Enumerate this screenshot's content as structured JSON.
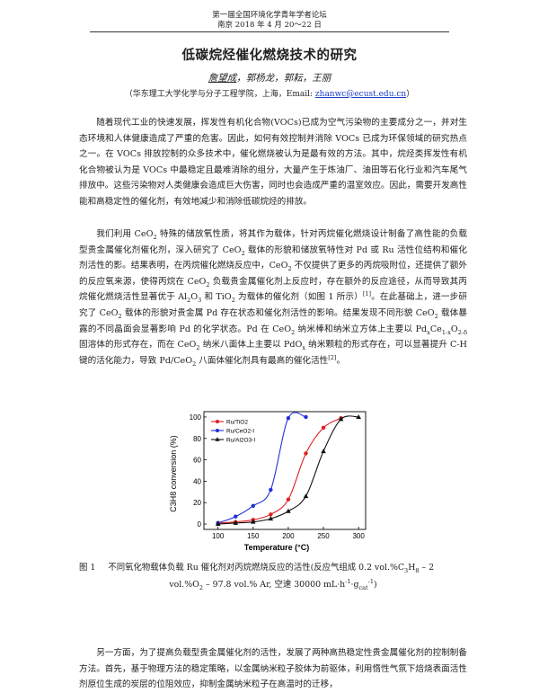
{
  "header": {
    "conference": "第一届全国环境化学青年学者论坛",
    "location_date": "南京  2018 年 4 月 20～22 日"
  },
  "title": "低碳烷烃催化燃烧技术的研究",
  "authors": {
    "first": "詹望成",
    "rest": "，郭杨龙，郭耘，王丽"
  },
  "affiliation": {
    "text": "（华东理工大学化学与分子工程学院，上海，Email:",
    "email": "zhanwc@ecust.edu.cn",
    "close": "）"
  },
  "paragraphs": {
    "p1": "随着现代工业的快速发展，挥发性有机化合物(VOCs)已成为空气污染物的主要成分之一，并对生态环境和人体健康造成了严重的危害。因此，如何有效控制并消除 VOCs 已成为环保领域的研究热点之一。在 VOCs 排放控制的众多技术中，催化燃烧被认为是最有效的方法。其中，烷烃类挥发性有机化合物被认为是 VOCs 中最稳定且最难消除的组分，大量产生于炼油厂、油田等石化行业和汽车尾气排放中。这些污染物对人类健康会造成巨大伤害，同时也会造成严重的温室效应。因此，需要开发高性能和高稳定性的催化剂，有效地减少和消除低碳烷烃的排放。",
    "p2_a": "我们利用 CeO",
    "p2_b": " 特殊的储放氧性质，将其作为载体，针对丙烷催化燃烧设计制备了高性能的负载型贵金属催化剂催化剂，深入研究了 CeO",
    "p2_c": " 载体的形貌和储放氧特性对 Pd 或 Ru 活性位结构和催化剂活性的影。结果表明，在丙烷催化燃烧反应中，CeO",
    "p2_d": " 不仅提供了更多的丙烷吸附位，还提供了额外的反应氧来源，使得丙烷在 CeO",
    "p2_e": " 负载贵金属催化剂上反应时，存在额外的反应途径，从而导致其丙烷催化燃烧活性显著优于 Al",
    "p2_f": "O",
    "p2_g": " 和 TiO",
    "p2_h": " 为载体的催化剂（如图 1 所示）",
    "p2_ref1": "[1]",
    "p2_i": "。在此基础上，进一步研究了 CeO",
    "p2_j": " 载体的形貌对贵金属 Pd 存在状态和催化剂活性的影响。结果发现不同形貌 CeO",
    "p2_k": " 载体暴露的不同晶面会显著影响 Pd 的化学状态。Pd 在 CeO",
    "p2_l": " 纳米棒和纳米立方体上主要以 Pd",
    "p2_m": "Ce",
    "p2_n": "O",
    "p2_o": " 固溶体的形式存在，而在 CeO",
    "p2_p": " 纳米八面体上主要以 PdO",
    "p2_q": " 纳米颗粒的形式存在，可以显著提升 C-H 键的活化能力，导致 Pd/CeO",
    "p2_r": " 八面体催化剂具有最高的催化活性",
    "p2_ref2": "[2]",
    "p2_s": "。",
    "p3": "另一方面，为了提高负载型贵金属催化剂的活性，发展了两种高热稳定性贵金属催化剂的控制制备方法。首先，基于物理方法的稳定策略，以金属纳米粒子胶体为前驱体，利用惰性气氛下焙烧表面活性剂原位生成的炭层的位阻效应，抑制金属纳米粒子在高温时的迁移，"
  },
  "subs": {
    "two": "2",
    "three": "3",
    "x": "x",
    "one_minus_x": "1-x",
    "two_minus_d": "2-δ"
  },
  "caption": {
    "label": "图 1",
    "line1": "不同氧化物载体负载 Ru 催化剂对丙烷燃烧反应的活性(反应气组成 0.2 vol.%C",
    "c3": "3",
    "h8": "H",
    "eight": "8",
    "line1_end": " – 2",
    "line2": "vol.%O",
    "line2_b": " – 97.8 vol.% Ar, 空速 30000 mL·h",
    "exp": "-1",
    "line2_c": "·g",
    "cat": "cat",
    "exp2": "-1",
    "line2_d": ")"
  },
  "chart_data": {
    "type": "line",
    "xlabel": "Temperature (°C)",
    "ylabel": "C3H8 conversion (%)",
    "xlim": [
      80,
      310
    ],
    "ylim": [
      -5,
      105
    ],
    "xticks": [
      100,
      150,
      200,
      250,
      300
    ],
    "yticks": [
      0,
      20,
      40,
      60,
      80,
      100
    ],
    "legend_position": "top-left",
    "series": [
      {
        "name": "Ru/TiO2",
        "color": "#e02020",
        "marker": "circle",
        "x": [
          100,
          125,
          150,
          175,
          200,
          225,
          250,
          275
        ],
        "y": [
          1,
          2,
          4,
          9,
          23,
          66,
          90,
          99
        ]
      },
      {
        "name": "Ru/CeO2-I",
        "color": "#2030d8",
        "marker": "circle",
        "x": [
          100,
          125,
          150,
          175,
          200,
          225
        ],
        "y": [
          1,
          7,
          17,
          32,
          99,
          100
        ]
      },
      {
        "name": "Ru/Al2O3-I",
        "color": "#111111",
        "marker": "triangle",
        "x": [
          100,
          125,
          150,
          175,
          200,
          225,
          250,
          275,
          300
        ],
        "y": [
          0,
          1,
          2,
          5,
          12,
          26,
          68,
          98,
          100
        ]
      }
    ]
  }
}
